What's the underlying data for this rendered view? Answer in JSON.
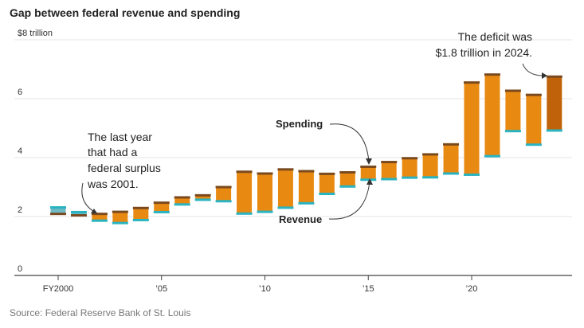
{
  "chart_data": {
    "type": "range-bar",
    "title": "Gap between federal revenue and spending",
    "source": "Source: Federal Reserve Bank of St. Louis",
    "ylabel": "",
    "y_unit_label": "$8 trillion",
    "ylim": [
      0,
      8
    ],
    "yticks": [
      {
        "value": 0,
        "label": "0"
      },
      {
        "value": 2,
        "label": "2"
      },
      {
        "value": 4,
        "label": "4"
      },
      {
        "value": 6,
        "label": "6"
      },
      {
        "value": 8,
        "label": "$8 trillion"
      }
    ],
    "xticks": [
      {
        "year": 2000,
        "label": "FY2000"
      },
      {
        "year": 2005,
        "label": "’05"
      },
      {
        "year": 2010,
        "label": "’10"
      },
      {
        "year": 2015,
        "label": "’15"
      },
      {
        "year": 2020,
        "label": "’20"
      }
    ],
    "series_names": [
      "Spending",
      "Revenue"
    ],
    "years": [
      2000,
      2001,
      2002,
      2003,
      2004,
      2005,
      2006,
      2007,
      2008,
      2009,
      2010,
      2011,
      2012,
      2013,
      2014,
      2015,
      2016,
      2017,
      2018,
      2019,
      2020,
      2021,
      2022,
      2023,
      2024
    ],
    "spending": [
      2.09,
      2.04,
      2.09,
      2.16,
      2.29,
      2.47,
      2.65,
      2.72,
      3.0,
      3.52,
      3.46,
      3.6,
      3.54,
      3.45,
      3.5,
      3.69,
      3.85,
      3.98,
      4.11,
      4.45,
      6.55,
      6.82,
      6.27,
      6.13,
      6.75
    ],
    "revenue": [
      2.31,
      2.15,
      1.86,
      1.78,
      1.88,
      2.15,
      2.41,
      2.57,
      2.52,
      2.1,
      2.16,
      2.3,
      2.45,
      2.77,
      3.02,
      3.25,
      3.27,
      3.32,
      3.33,
      3.46,
      3.42,
      4.05,
      4.9,
      4.44,
      4.92
    ],
    "surplus_color": "#6db9c6",
    "deficit_color": "#e88a12",
    "highlight_color": "#c0620a",
    "spending_cap_color": "#7a4a1e",
    "revenue_cap_color": "#2ab3c0",
    "annotations": {
      "surplus_lines": [
        "The last year",
        "that had a",
        "federal surplus",
        "was 2001."
      ],
      "deficit_lines": [
        "The deficit was",
        "$1.8 trillion in 2024."
      ],
      "spending_label": "Spending",
      "revenue_label": "Revenue"
    }
  }
}
